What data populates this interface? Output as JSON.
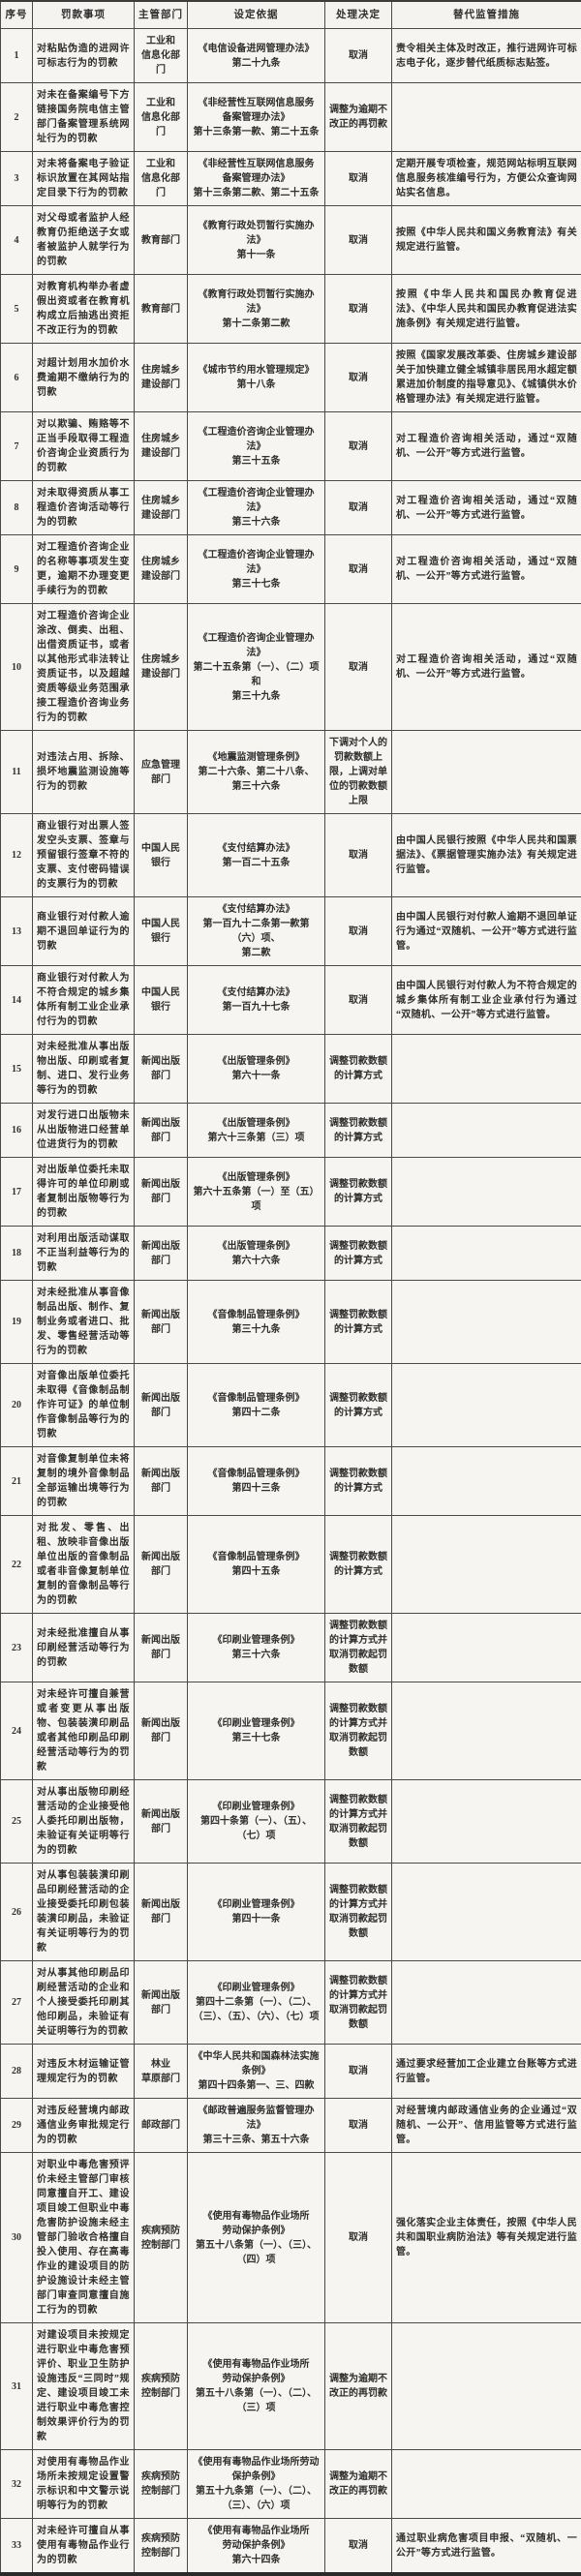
{
  "table": {
    "columns": [
      "序号",
      "罚款事项",
      "主管部门",
      "设定依据",
      "处理决定",
      "替代监管措施"
    ],
    "rows": [
      {
        "no": "1",
        "item": "对粘贴伪造的进网许可标志行为的罚款",
        "dept": "工业和\n信息化部门",
        "basis": "《电信设备进网管理办法》\n第二十九条",
        "decision": "取消",
        "measure": "责令相关主体及时改正，推行进网许可标志电子化，逐步替代纸质标志贴签。"
      },
      {
        "no": "2",
        "item": "对未在备案编号下方链接国务院电信主管部门备案管理系统网址行为的罚款",
        "dept": "工业和\n信息化部门",
        "basis": "《非经营性互联网信息服务\n备案管理办法》\n第十三条第一款、第二十五条",
        "decision": "调整为逾期不改正的再罚款",
        "measure": ""
      },
      {
        "no": "3",
        "item": "对未将备案电子验证标识放置在其网站指定目录下行为的罚款",
        "dept": "工业和\n信息化部门",
        "basis": "《非经营性互联网信息服务\n备案管理办法》\n第十三条第二款、第二十五条",
        "decision": "取消",
        "measure": "定期开展专项检查，规范网站标明互联网信息服务核准编号行为，方便公众查询网站实名信息。"
      },
      {
        "no": "4",
        "item": "对父母或者监护人经教育仍拒绝送子女或者被监护人就学行为的罚款",
        "dept": "教育部门",
        "basis": "《教育行政处罚暂行实施办法》\n第十一条",
        "decision": "取消",
        "measure": "按照《中华人民共和国义务教育法》有关规定进行监管。"
      },
      {
        "no": "5",
        "item": "对教育机构举办者虚假出资或者在教育机构成立后抽逃出资拒不改正行为的罚款",
        "dept": "教育部门",
        "basis": "《教育行政处罚暂行实施办法》\n第十二条第二款",
        "decision": "取消",
        "measure": "按照《中华人民共和国民办教育促进法》、《中华人民共和国民办教育促进法实施条例》有关规定进行监管。"
      },
      {
        "no": "6",
        "item": "对超计划用水加价水费逾期不缴纳行为的罚款",
        "dept": "住房城乡\n建设部门",
        "basis": "《城市节约用水管理规定》\n第十八条",
        "decision": "取消",
        "measure": "按照《国家发展改革委、住房城乡建设部关于加快建立健全城镇非居民用水超定额累进加价制度的指导意见》、《城镇供水价格管理办法》有关规定进行监管。"
      },
      {
        "no": "7",
        "item": "对以欺骗、贿赂等不正当手段取得工程造价咨询企业资质行为的罚款",
        "dept": "住房城乡\n建设部门",
        "basis": "《工程造价咨询企业管理办法》\n第三十五条",
        "decision": "取消",
        "measure": "对工程造价咨询相关活动，通过“双随机、一公开”等方式进行监管。"
      },
      {
        "no": "8",
        "item": "对未取得资质从事工程造价咨询活动等行为的罚款",
        "dept": "住房城乡\n建设部门",
        "basis": "《工程造价咨询企业管理办法》\n第三十六条",
        "decision": "取消",
        "measure": "对工程造价咨询相关活动，通过“双随机、一公开”等方式进行监管。"
      },
      {
        "no": "9",
        "item": "对工程造价咨询企业的名称等事项发生变更，逾期不办理变更手续行为的罚款",
        "dept": "住房城乡\n建设部门",
        "basis": "《工程造价咨询企业管理办法》\n第三十七条",
        "decision": "取消",
        "measure": "对工程造价咨询相关活动，通过“双随机、一公开”等方式进行监管。"
      },
      {
        "no": "10",
        "item": "对工程造价咨询企业涂改、倒卖、出租、出借资质证书，或者以其他形式非法转让资质证书，以及超越资质等级业务范围承接工程造价咨询业务行为的罚款",
        "dept": "住房城乡\n建设部门",
        "basis": "《工程造价咨询企业管理办法》\n第二十五条第（一）、（二）项和\n第三十九条",
        "decision": "取消",
        "measure": "对工程造价咨询相关活动，通过“双随机、一公开”等方式进行监管。"
      },
      {
        "no": "11",
        "item": "对违法占用、拆除、损坏地震监测设施等行为的罚款",
        "dept": "应急管理\n部门",
        "basis": "《地震监测管理条例》\n第二十六条、第二十八条、\n第三十六条",
        "decision": "下调对个人的罚款数额上限，上调对单位的罚款数额上限",
        "measure": ""
      },
      {
        "no": "12",
        "item": "商业银行对出票人签发空头支票、签章与预留银行签章不符的支票、支付密码错误的支票行为的罚款",
        "dept": "中国人民\n银行",
        "basis": "《支付结算办法》\n第一百二十五条",
        "decision": "取消",
        "measure": "由中国人民银行按照《中华人民共和国票据法》、《票据管理实施办法》有关规定进行监管。"
      },
      {
        "no": "13",
        "item": "商业银行对付款人逾期不退回单证行为的罚款",
        "dept": "中国人民\n银行",
        "basis": "《支付结算办法》\n第一百九十二条第一款第（六）项、\n第二款",
        "decision": "取消",
        "measure": "由中国人民银行对付款人逾期不退回单证行为通过“双随机、一公开”等方式进行监管。"
      },
      {
        "no": "14",
        "item": "商业银行对付款人为不符合规定的城乡集体所有制工业企业承付行为的罚款",
        "dept": "中国人民\n银行",
        "basis": "《支付结算办法》\n第一百九十七条",
        "decision": "取消",
        "measure": "由中国人民银行对付款人为不符合规定的城乡集体所有制工业企业承付行为通过“双随机、一公开”等方式进行监管。"
      },
      {
        "no": "15",
        "item": "对未经批准从事出版物出版、印刷或者复制、进口、发行业务等行为的罚款",
        "dept": "新闻出版\n部门",
        "basis": "《出版管理条例》\n第六十一条",
        "decision": "调整罚款数额的计算方式",
        "measure": ""
      },
      {
        "no": "16",
        "item": "对发行进口出版物未从出版物进口经营单位进货行为的罚款",
        "dept": "新闻出版\n部门",
        "basis": "《出版管理条例》\n第六十三条第（三）项",
        "decision": "调整罚款数额的计算方式",
        "measure": ""
      },
      {
        "no": "17",
        "item": "对出版单位委托未取得许可的单位印刷或者复制出版物等行为的罚款",
        "dept": "新闻出版\n部门",
        "basis": "《出版管理条例》\n第六十五条第（一）至（五）项",
        "decision": "调整罚款数额的计算方式",
        "measure": ""
      },
      {
        "no": "18",
        "item": "对利用出版活动谋取不正当利益等行为的罚款",
        "dept": "新闻出版\n部门",
        "basis": "《出版管理条例》\n第六十六条",
        "decision": "调整罚款数额的计算方式",
        "measure": ""
      },
      {
        "no": "19",
        "item": "对未经批准从事音像制品出版、制作、复制业务或者进口、批发、零售经营活动等行为的罚款",
        "dept": "新闻出版\n部门",
        "basis": "《音像制品管理条例》\n第三十九条",
        "decision": "调整罚款数额的计算方式",
        "measure": ""
      },
      {
        "no": "20",
        "item": "对音像出版单位委托未取得《音像制品制作许可证》的单位制作音像制品等行为的罚款",
        "dept": "新闻出版\n部门",
        "basis": "《音像制品管理条例》\n第四十二条",
        "decision": "调整罚款数额的计算方式",
        "measure": ""
      },
      {
        "no": "21",
        "item": "对音像复制单位未将复制的境外音像制品全部运输出境等行为的罚款",
        "dept": "新闻出版\n部门",
        "basis": "《音像制品管理条例》\n第四十三条",
        "decision": "调整罚款数额的计算方式",
        "measure": ""
      },
      {
        "no": "22",
        "item": "对批发、零售、出租、放映非音像出版单位出版的音像制品或者非音像复制单位复制的音像制品等行为的罚款",
        "dept": "新闻出版\n部门",
        "basis": "《音像制品管理条例》\n第四十五条",
        "decision": "调整罚款数额的计算方式",
        "measure": ""
      },
      {
        "no": "23",
        "item": "对未经批准擅自从事印刷经营活动等行为的罚款",
        "dept": "新闻出版\n部门",
        "basis": "《印刷业管理条例》\n第三十六条",
        "decision": "调整罚款数额的计算方式并取消罚款起罚数额",
        "measure": ""
      },
      {
        "no": "24",
        "item": "对未经许可擅自兼营或者变更从事出版物、包装装潢印刷品或者其他印刷品印刷经营活动等行为的罚款",
        "dept": "新闻出版\n部门",
        "basis": "《印刷业管理条例》\n第三十七条",
        "decision": "调整罚款数额的计算方式并取消罚款起罚数额",
        "measure": ""
      },
      {
        "no": "25",
        "item": "对从事出版物印刷经营活动的企业接受他人委托印刷出版物，未验证有关证明等行为的罚款",
        "dept": "新闻出版\n部门",
        "basis": "《印刷业管理条例》\n第四十条第（一）、（五）、\n（七）项",
        "decision": "调整罚款数额的计算方式并取消罚款起罚数额",
        "measure": ""
      },
      {
        "no": "26",
        "item": "对从事包装装潢印刷品印刷经营活动的企业接受委托印刷包装装潢印刷品，未验证有关证明等行为的罚款",
        "dept": "新闻出版\n部门",
        "basis": "《印刷业管理条例》\n第四十一条",
        "decision": "调整罚款数额的计算方式并取消罚款起罚数额",
        "measure": ""
      },
      {
        "no": "27",
        "item": "对从事其他印刷品印刷经营活动的企业和个人接受委托印刷其他印刷品，未验证有关证明等行为的罚款",
        "dept": "新闻出版\n部门",
        "basis": "《印刷业管理条例》\n第四十二条第（一）、（二）、\n（三）、（五）、（六）、（七）项",
        "decision": "调整罚款数额的计算方式并取消罚款起罚数额",
        "measure": ""
      },
      {
        "no": "28",
        "item": "对违反木材运输证管理规定行为的罚款",
        "dept": "林业\n草原部门",
        "basis": "《中华人民共和国森林法实施条例》\n第四十四条第一、三、四款",
        "decision": "取消",
        "measure": "通过要求经营加工企业建立台账等方式进行监管。"
      },
      {
        "no": "29",
        "item": "对违反经营境内邮政通信业务审批规定行为的罚款",
        "dept": "邮政部门",
        "basis": "《邮政普遍服务监督管理办法》\n第三十三条、第五十六条",
        "decision": "取消",
        "measure": "对经营境内邮政通信业务的企业通过“双随机、一公开”、信用监管等方式进行监管。"
      },
      {
        "no": "30",
        "item": "对职业中毒危害预评价未经主管部门审核同意擅自开工、建设项目竣工但职业中毒危害防护设施未经主管部门验收合格擅自投入使用、存在高毒作业的建设项目的防护设施设计未经主管部门审查同意擅自施工行为的罚款",
        "dept": "疾病预防\n控制部门",
        "basis": "《使用有毒物品作业场所\n劳动保护条例》\n第五十八条第（一）、（三）、\n（四）项",
        "decision": "取消",
        "measure": "强化落实企业主体责任，按照《中华人民共和国职业病防治法》等有关规定进行监管。"
      },
      {
        "no": "31",
        "item": "对建设项目未按规定进行职业中毒危害预评价、职业卫生防护设施违反“三同时”规定、建设项目竣工未进行职业中毒危害控制效果评价行为的罚款",
        "dept": "疾病预防\n控制部门",
        "basis": "《使用有毒物品作业场所\n劳动保护条例》\n第五十八条第（一）、（二）、\n（三）项",
        "decision": "调整为逾期不改正的再罚款",
        "measure": ""
      },
      {
        "no": "32",
        "item": "对使用有毒物品作业场所未按规定设置警示标识和中文警示说明等行为的罚款",
        "dept": "疾病预防\n控制部门",
        "basis": "《使用有毒物品作业场所劳动保护条例》\n第五十九条第（一）、（二）、\n（三）、（六）项",
        "decision": "调整为逾期不改正的再罚款",
        "measure": ""
      },
      {
        "no": "33",
        "item": "对未经许可擅自从事使用有毒物品作业行为的罚款",
        "dept": "疾病预防\n控制部门",
        "basis": "《使用有毒物品作业场所\n劳动保护条例》\n第六十四条",
        "decision": "取消",
        "measure": "通过职业病危害项目申报、“双随机、一公开”等方式进行监管。"
      }
    ]
  }
}
